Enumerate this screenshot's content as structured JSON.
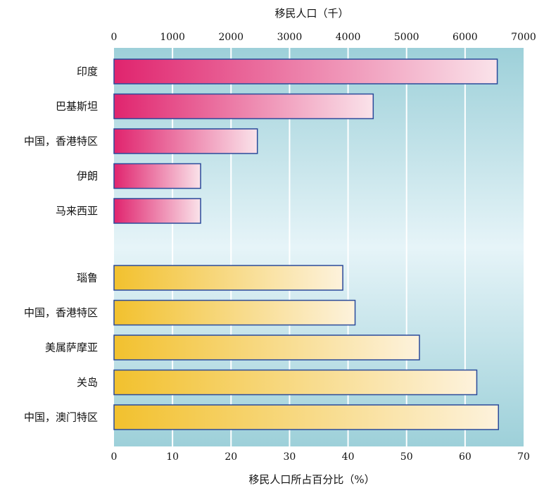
{
  "chart_data": [
    {
      "type": "bar",
      "orientation": "horizontal",
      "axis_position": "top",
      "xlabel": "移民人口（千）",
      "xlim": [
        0,
        7000
      ],
      "xticks": [
        "0",
        "1000",
        "2000",
        "3000",
        "4000",
        "5000",
        "6000",
        "7000"
      ],
      "categories": [
        "印度",
        "巴基斯坦",
        "中国，香港特区",
        "伊朗",
        "马来西亚"
      ],
      "values": [
        6550,
        4430,
        2450,
        1480,
        1480
      ],
      "color": "#e0246e"
    },
    {
      "type": "bar",
      "orientation": "horizontal",
      "axis_position": "bottom",
      "xlabel": "移民人口所占百分比（%）",
      "xlim": [
        0,
        70
      ],
      "xticks": [
        "0",
        "10",
        "20",
        "30",
        "40",
        "50",
        "60",
        "70"
      ],
      "categories": [
        "瑙鲁",
        "中国，香港特区",
        "美属萨摩亚",
        "关岛",
        "中国，澳门特区"
      ],
      "values": [
        39.1,
        41.2,
        52.2,
        62.0,
        65.7
      ],
      "color": "#f2c12e"
    }
  ],
  "style": {
    "plot_bg_top": "#9dd0d9",
    "plot_bg_mid": "#e6f4f8",
    "grid": "on",
    "bar_border": "#2b4a9a"
  }
}
